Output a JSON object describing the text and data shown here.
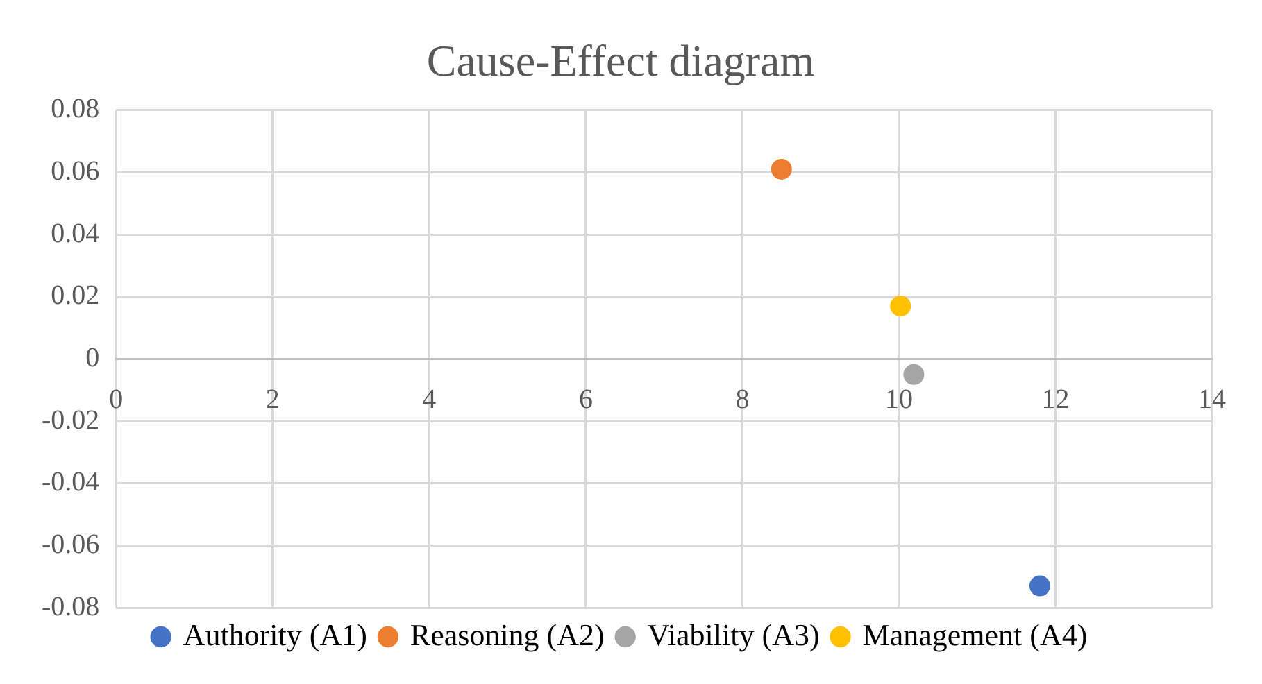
{
  "chart_data": {
    "type": "scatter",
    "title": "Cause-Effect diagram",
    "series": [
      {
        "name": "Authority (A1)",
        "color": "#4472c4",
        "x": [
          11.8
        ],
        "values": [
          -0.073
        ]
      },
      {
        "name": "Reasoning (A2)",
        "color": "#ed7d31",
        "x": [
          8.5
        ],
        "values": [
          0.061
        ]
      },
      {
        "name": "Viability (A3)",
        "color": "#a5a5a5",
        "x": [
          10.19
        ],
        "values": [
          -0.005
        ]
      },
      {
        "name": "Management (A4)",
        "color": "#ffc000",
        "x": [
          10.02
        ],
        "values": [
          0.017
        ]
      }
    ],
    "xlim": [
      0,
      14
    ],
    "xticks": [
      0,
      2,
      4,
      6,
      8,
      10,
      12,
      14
    ],
    "ylim": [
      -0.08,
      0.08
    ],
    "yticks": [
      -0.08,
      -0.06,
      -0.04,
      -0.02,
      0,
      0.02,
      0.04,
      0.06,
      0.08
    ],
    "grid": true,
    "legend": "bottom",
    "marker": "circle"
  }
}
